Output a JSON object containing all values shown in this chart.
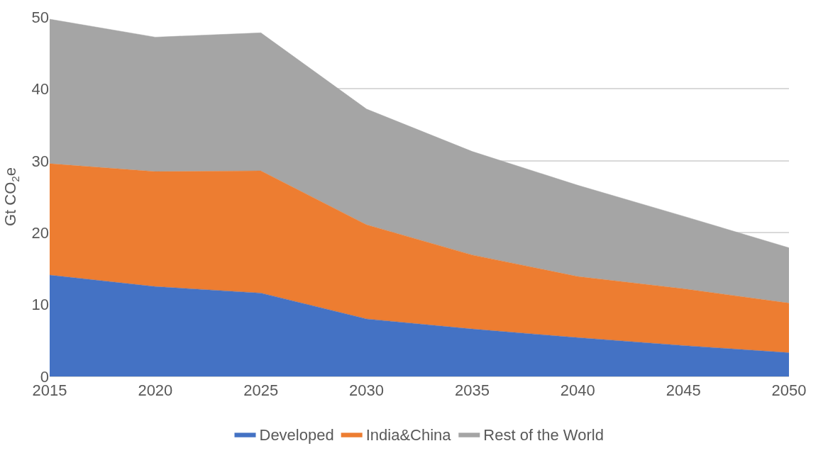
{
  "chart_data": {
    "type": "area",
    "stacked": true,
    "ylabel": "Gt CO$_{2}$e",
    "x": [
      2015,
      2020,
      2025,
      2030,
      2035,
      2040,
      2045,
      2050
    ],
    "series": [
      {
        "name": "Developed",
        "color": "#4472c4",
        "values": [
          14.1,
          12.5,
          11.6,
          8.0,
          6.6,
          5.4,
          4.3,
          3.3
        ]
      },
      {
        "name": "India&China",
        "color": "#ed7d31",
        "values": [
          15.5,
          16.0,
          17.0,
          13.1,
          10.3,
          8.5,
          7.9,
          6.9
        ]
      },
      {
        "name": "Rest of the World",
        "color": "#a5a5a5",
        "values": [
          20.1,
          18.7,
          19.2,
          16.1,
          14.4,
          12.7,
          10.1,
          7.7
        ]
      }
    ],
    "xlim": [
      2015,
      2050
    ],
    "xticks": [
      2015,
      2020,
      2025,
      2030,
      2035,
      2040,
      2045,
      2050
    ],
    "ylim": [
      0,
      50
    ],
    "yticks": [
      0,
      10,
      20,
      30,
      40,
      50
    ],
    "grid": "y",
    "legend": "bottom"
  }
}
